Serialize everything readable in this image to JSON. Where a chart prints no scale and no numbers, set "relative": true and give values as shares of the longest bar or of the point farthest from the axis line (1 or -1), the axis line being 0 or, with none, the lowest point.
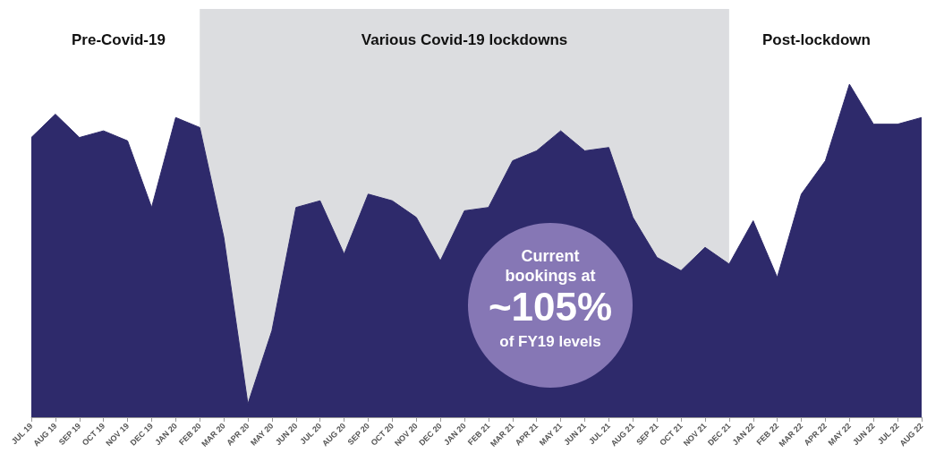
{
  "chart_data": {
    "type": "area",
    "relative": true,
    "categories": [
      "JUL 19",
      "AUG 19",
      "SEP 19",
      "OCT 19",
      "NOV 19",
      "DEC 19",
      "JAN 20",
      "FEB 20",
      "MAR 20",
      "APR 20",
      "MAY 20",
      "JUN 20",
      "JUL 20",
      "AUG 20",
      "SEP 20",
      "OCT 20",
      "NOV 20",
      "DEC 20",
      "JAN 20",
      "FEB 21",
      "MAR 21",
      "APR 21",
      "MAY 21",
      "JUN 21",
      "JUL 21",
      "AUG 21",
      "SEP 21",
      "OCT 21",
      "NOV 21",
      "DEC 21",
      "JAN 22",
      "FEB 22",
      "MAR 22",
      "APR 22",
      "MAY 22",
      "JUN 22",
      "JUL 22",
      "AUG 22"
    ],
    "series": [
      {
        "color": "#2e2a6b",
        "values": [
          0.84,
          0.91,
          0.84,
          0.86,
          0.83,
          0.63,
          0.9,
          0.87,
          0.54,
          0.04,
          0.26,
          0.63,
          0.65,
          0.49,
          0.67,
          0.65,
          0.6,
          0.47,
          0.62,
          0.63,
          0.77,
          0.8,
          0.86,
          0.8,
          0.81,
          0.6,
          0.48,
          0.44,
          0.51,
          0.46,
          0.59,
          0.42,
          0.67,
          0.77,
          1,
          0.88,
          0.88,
          0.9
        ]
      }
    ],
    "bands": [
      {
        "axis": "x",
        "from": "FEB 20",
        "to": "DEC 21",
        "label": "Various Covid-19 lockdowns",
        "color": "#dcdde0"
      }
    ],
    "annotations": [
      "Pre-Covid-19",
      "Post-lockdown",
      "Current bookings at",
      "~105%",
      "of FY19 levels"
    ],
    "grid": false,
    "marker": "none"
  }
}
